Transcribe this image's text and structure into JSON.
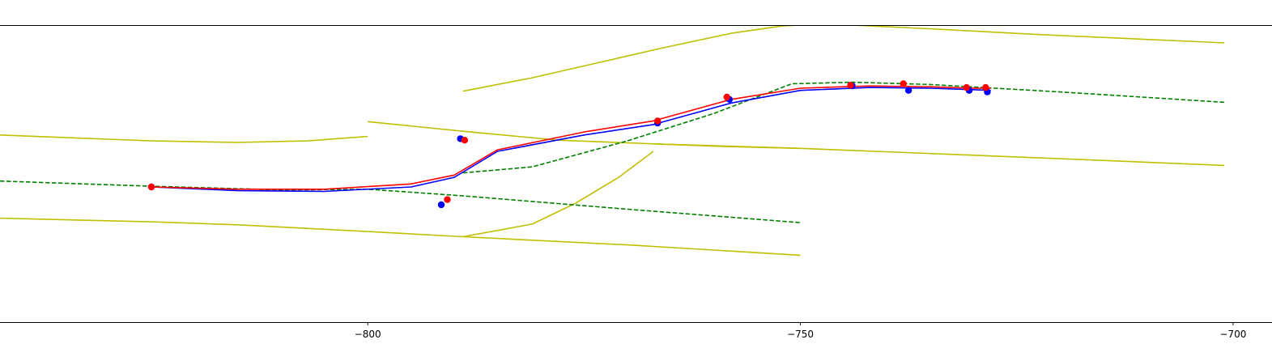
{
  "chart_data": {
    "type": "line",
    "title": "",
    "xlabel": "",
    "ylabel": "",
    "xlim": [
      -842.5,
      -695.5
    ],
    "ylim": [
      -28,
      12
    ],
    "x_ticks": [
      -800,
      -750,
      -700
    ],
    "x_tick_labels": [
      "−800",
      "−750",
      "−700"
    ],
    "frame": "top-and-bottom",
    "grid": false,
    "legend": "none",
    "colors": {
      "lane_boundary": "#bfbf00",
      "centerline": "#008000",
      "path_blue": "#0000ff",
      "path_red": "#ff0000"
    },
    "series": [
      {
        "kind": "line",
        "style": "solid",
        "color": "#bfbf00",
        "x": [
          -842.5,
          -825,
          -815,
          -807,
          -800
        ],
        "y": [
          -2.8,
          -3.6,
          -3.8,
          -3.6,
          -3.0
        ]
      },
      {
        "kind": "line",
        "style": "solid",
        "color": "#bfbf00",
        "x": [
          -800,
          -789,
          -778,
          -760,
          -750
        ],
        "y": [
          -1.0,
          -2.3,
          -3.5,
          -4.3,
          -4.6
        ]
      },
      {
        "kind": "line",
        "style": "solid",
        "color": "#bfbf00",
        "x": [
          -789,
          -781,
          -772,
          -766,
          -758,
          -752,
          -750,
          -744,
          -735,
          -722,
          -701
        ],
        "y": [
          3.1,
          4.9,
          7.3,
          8.9,
          10.9,
          11.9,
          12.0,
          12.0,
          11.5,
          10.7,
          9.6
        ]
      },
      {
        "kind": "line",
        "style": "solid",
        "color": "#bfbf00",
        "x": [
          -767,
          -750,
          -735,
          -720,
          -701
        ],
        "y": [
          -4.0,
          -4.6,
          -5.3,
          -6.0,
          -6.9
        ]
      },
      {
        "kind": "line",
        "style": "solid",
        "color": "#bfbf00",
        "x": [
          -789,
          -781,
          -776,
          -771,
          -767
        ],
        "y": [
          -16.5,
          -14.8,
          -12.0,
          -8.5,
          -5.0
        ]
      },
      {
        "kind": "line",
        "style": "solid",
        "color": "#bfbf00",
        "x": [
          -842.5,
          -825,
          -815,
          -800,
          -789,
          -770,
          -750
        ],
        "y": [
          -14.0,
          -14.5,
          -14.9,
          -15.8,
          -16.5,
          -17.6,
          -19.0
        ]
      },
      {
        "kind": "line",
        "style": "dashed",
        "color": "#008000",
        "x": [
          -842.5,
          -825,
          -810,
          -800,
          -789,
          -770,
          -750
        ],
        "y": [
          -9.0,
          -9.7,
          -10.2,
          -10.1,
          -11.0,
          -12.8,
          -14.6
        ]
      },
      {
        "kind": "line",
        "style": "dashed",
        "color": "#008000",
        "x": [
          -789,
          -781,
          -770,
          -760,
          -751,
          -744,
          -735,
          -720,
          -701
        ],
        "y": [
          -7.9,
          -7.1,
          -3.6,
          0.1,
          4.1,
          4.3,
          4.0,
          3.0,
          1.6
        ]
      },
      {
        "kind": "line",
        "style": "solid",
        "color": "#0000ff",
        "x": [
          -825,
          -815,
          -805,
          -795,
          -790,
          -785,
          -775,
          -767,
          -758,
          -750,
          -742,
          -735,
          -730,
          -728
        ],
        "y": [
          -9.8,
          -10.3,
          -10.4,
          -9.8,
          -8.5,
          -5.0,
          -2.8,
          -1.4,
          1.5,
          3.2,
          3.6,
          3.5,
          3.3,
          3.2
        ]
      },
      {
        "kind": "line",
        "style": "solid",
        "color": "#ff0000",
        "x": [
          -825,
          -815,
          -805,
          -795,
          -790,
          -785,
          -775,
          -767,
          -758,
          -750,
          -742,
          -735,
          -730,
          -728
        ],
        "y": [
          -9.8,
          -10.1,
          -10.1,
          -9.4,
          -8.2,
          -4.8,
          -2.4,
          -0.9,
          2.0,
          3.5,
          3.8,
          3.7,
          3.5,
          3.5
        ]
      },
      {
        "kind": "scatter",
        "color": "#0000ff",
        "x": [
          -825,
          -791.5,
          -789.3,
          -766.5,
          -758.2,
          -744,
          -737.5,
          -730.5,
          -728.4
        ],
        "y": [
          -9.8,
          -12.2,
          -3.3,
          -1.2,
          2.0,
          3.8,
          3.2,
          3.2,
          3.0
        ]
      },
      {
        "kind": "scatter",
        "color": "#ff0000",
        "x": [
          -825,
          -790.8,
          -788.8,
          -766.5,
          -758.5,
          -744.2,
          -738.1,
          -730.8,
          -728.6
        ],
        "y": [
          -9.8,
          -11.5,
          -3.5,
          -0.9,
          2.3,
          3.9,
          4.1,
          3.6,
          3.6
        ]
      }
    ]
  }
}
